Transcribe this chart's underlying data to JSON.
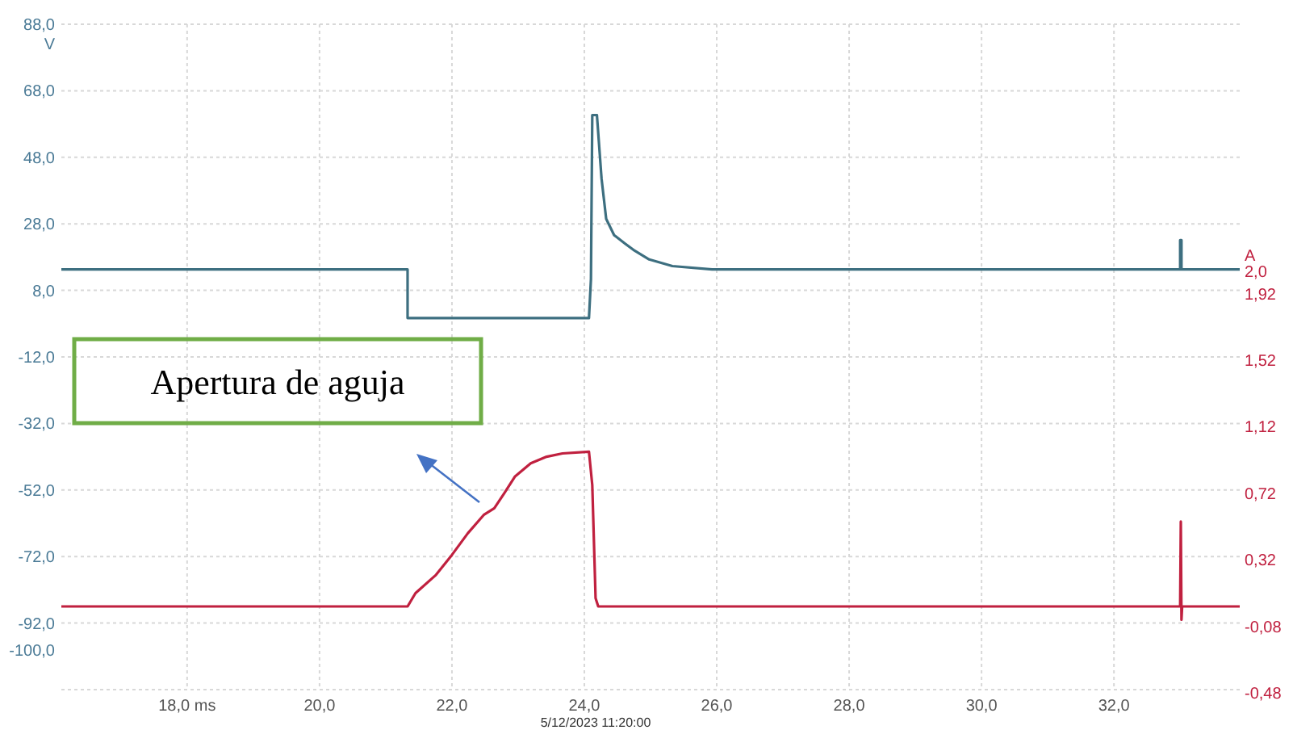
{
  "chart_data": {
    "type": "line",
    "ylabel": "V",
    "y2label": "A",
    "xlim": [
      16.1,
      33.9
    ],
    "xticks": [
      {
        "value": 18,
        "label": "18,0 ms"
      },
      {
        "value": 20,
        "label": "20,0"
      },
      {
        "value": 22,
        "label": "22,0"
      },
      {
        "value": 24,
        "label": "24,0"
      },
      {
        "value": 26,
        "label": "26,0"
      },
      {
        "value": 28,
        "label": "28,0"
      },
      {
        "value": 30,
        "label": "30,0"
      },
      {
        "value": 32,
        "label": "32,0"
      }
    ],
    "ylim": [
      -112,
      88
    ],
    "yticks": [
      {
        "value": 88,
        "label": "88,0"
      },
      {
        "value": 68,
        "label": "68,0"
      },
      {
        "value": 48,
        "label": "48,0"
      },
      {
        "value": 28,
        "label": "28,0"
      },
      {
        "value": 8,
        "label": "8,0"
      },
      {
        "value": -12,
        "label": "-12,0"
      },
      {
        "value": -32,
        "label": "-32,0"
      },
      {
        "value": -52,
        "label": "-52,0"
      },
      {
        "value": -72,
        "label": "-72,0"
      },
      {
        "value": -92,
        "label": "-92,0"
      },
      {
        "value": -100,
        "label": "-100,0"
      }
    ],
    "y2lim": [
      -0.48,
      3.52
    ],
    "y2ticks": [
      {
        "value": 2.0,
        "label": "2,0"
      },
      {
        "value": 1.92,
        "label": "1,92"
      },
      {
        "value": 1.52,
        "label": "1,52"
      },
      {
        "value": 1.12,
        "label": "1,12"
      },
      {
        "value": 0.72,
        "label": "0,72"
      },
      {
        "value": 0.32,
        "label": "0,32"
      },
      {
        "value": -0.08,
        "label": "-0,08"
      },
      {
        "value": -0.48,
        "label": "-0,48"
      }
    ],
    "grid": true,
    "marker": "none",
    "line_style": "solid",
    "annotations": [
      "Apertura de aguja",
      "5/12/2023 11:20:00"
    ],
    "series": [
      {
        "color": "#3d6f80",
        "x": [
          16.1,
          21.33,
          21.33,
          24.07,
          24.1,
          24.12,
          24.19,
          24.26,
          24.33,
          24.45,
          24.62,
          24.74,
          24.98,
          25.33,
          25.93,
          33.0,
          33.0,
          33.02,
          33.02,
          33.9
        ],
        "values": [
          14.3,
          14.3,
          -0.3,
          -0.3,
          11.4,
          60.7,
          60.7,
          41.6,
          29.5,
          24.6,
          22,
          20.2,
          17.3,
          15.3,
          14.3,
          14.3,
          23.1,
          23.1,
          14.3,
          14.3
        ]
      },
      {
        "color": "#c0203f",
        "axis": "y2",
        "x": [
          16.1,
          21.33,
          21.45,
          21.76,
          22.0,
          22.24,
          22.48,
          22.64,
          22.79,
          22.95,
          23.19,
          23.43,
          23.67,
          24.07,
          24.12,
          24.17,
          24.21,
          33.0,
          33.01,
          33.02,
          33.03,
          33.9
        ],
        "values": [
          0.02,
          0.02,
          0.1,
          0.21,
          0.33,
          0.46,
          0.57,
          0.61,
          0.7,
          0.8,
          0.88,
          0.92,
          0.94,
          0.95,
          0.75,
          0.07,
          0.02,
          0.02,
          0.53,
          -0.06,
          0.02,
          0.02
        ]
      }
    ]
  }
}
